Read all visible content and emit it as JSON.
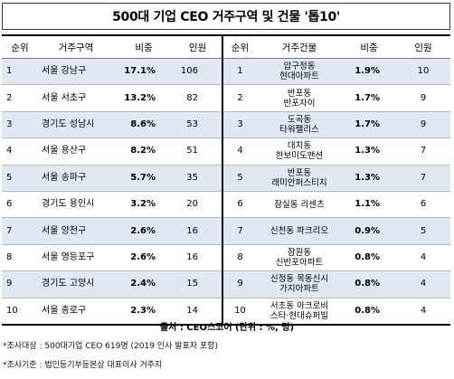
{
  "title": "500대 기업 CEO 거주구역 및 건물 '톱10'",
  "headers": {
    "left": [
      "순위",
      "거주구역",
      "비중",
      "인원"
    ],
    "right": [
      "순위",
      "거주건물",
      "비중",
      "인원"
    ]
  },
  "rows": [
    {
      "rank": "1",
      "region": "서울 강남구",
      "ratio": "17.1%",
      "count": "106",
      "rank2": "1",
      "building": "압구정동\n현대아파트",
      "ratio2": "1.9%",
      "count2": "10"
    },
    {
      "rank": "2",
      "region": "서울 서초구",
      "ratio": "13.2%",
      "count": "82",
      "rank2": "2",
      "building": "반포동\n반포자이",
      "ratio2": "1.7%",
      "count2": "9"
    },
    {
      "rank": "3",
      "region": "경기도 성남시",
      "ratio": "8.6%",
      "count": "53",
      "rank2": "3",
      "building": "도곡동\n타워팰리스",
      "ratio2": "1.7%",
      "count2": "9"
    },
    {
      "rank": "4",
      "region": "서울 용산구",
      "ratio": "8.2%",
      "count": "51",
      "rank2": "4",
      "building": "대치동\n한보미도맨션",
      "ratio2": "1.3%",
      "count2": "7"
    },
    {
      "rank": "5",
      "region": "서울 송파구",
      "ratio": "5.7%",
      "count": "35",
      "rank2": "5",
      "building": "반포동\n래미안퍼스티지",
      "ratio2": "1.3%",
      "count2": "7"
    },
    {
      "rank": "6",
      "region": "경기도 용인시",
      "ratio": "3.2%",
      "count": "20",
      "rank2": "6",
      "building": "잠실동 리센츠",
      "ratio2": "1.1%",
      "count2": "6"
    },
    {
      "rank": "7",
      "region": "서울 양천구",
      "ratio": "2.6%",
      "count": "16",
      "rank2": "7",
      "building": "신천동 파크리오",
      "ratio2": "0.9%",
      "count2": "5"
    },
    {
      "rank": "8",
      "region": "서울 영등포구",
      "ratio": "2.6%",
      "count": "16",
      "rank2": "8",
      "building": "잠원동\n신반포아파트",
      "ratio2": "0.8%",
      "count2": "4"
    },
    {
      "rank": "9",
      "region": "경기도 고양시",
      "ratio": "2.4%",
      "count": "15",
      "rank2": "9",
      "building": "신정동 목동신시\n가지아파트",
      "ratio2": "0.8%",
      "count2": "4"
    },
    {
      "rank": "10",
      "region": "서울 종로구",
      "ratio": "2.3%",
      "count": "14",
      "rank2": "10",
      "building": "서초동 아크로비\n스타·현대슈퍼빌",
      "ratio2": "0.8%",
      "count2": "4"
    }
  ],
  "source": "출처 : CEO스코어 (단위 : %, 명)",
  "notes": [
    "*조사대상 : 500대기업 CEO 619명 (2019 인사 발표자 포함)",
    "*조사기준 : 법인등기부등본상 대표이사 거주지"
  ],
  "colors": {
    "alt_row": "#dfe8f3",
    "border": "#000000"
  }
}
